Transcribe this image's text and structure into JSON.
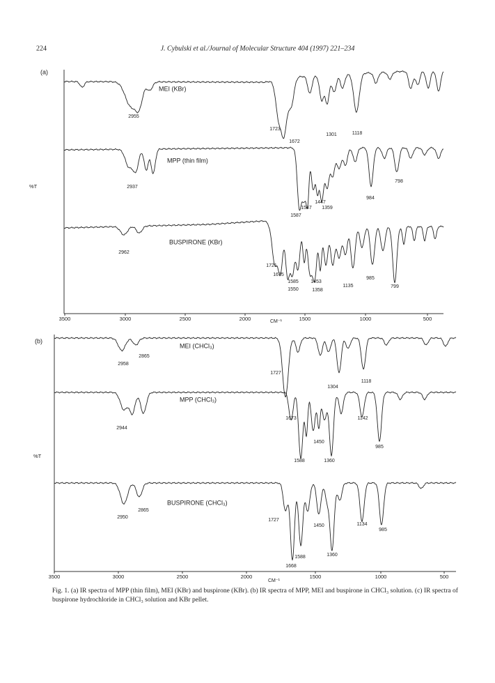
{
  "header": {
    "page_number": "224",
    "running_title": "J. Cybulski et al./Journal of Molecular Structure 404 (1997) 221–234"
  },
  "figure": {
    "panels": [
      {
        "label": "(a)",
        "y_axis_label": "%T",
        "x_axis_label": "CM⁻¹",
        "x_ticks": [
          3500,
          3000,
          2500,
          2000,
          1500,
          1000,
          500
        ],
        "spectra": [
          {
            "name": "MEI (KBr)",
            "peaks": [
              2955,
              1723,
              1672,
              1301,
              1118
            ]
          },
          {
            "name": "MPP (thin film)",
            "peaks": [
              2937,
              798,
              984,
              1447,
              1547,
              1359,
              1587
            ]
          },
          {
            "name": "BUSPIRONE (KBr)",
            "peaks": [
              2962,
              1721,
              1675,
              1585,
              1453,
              1550,
              1358,
              1135,
              985,
              799
            ]
          }
        ]
      },
      {
        "label": "(b)",
        "y_axis_label": "%T",
        "x_axis_label": "CM⁻¹",
        "x_ticks": [
          3500,
          3000,
          2500,
          2000,
          1500,
          1000,
          500
        ],
        "spectra": [
          {
            "name": "MEI (CHCl₃)",
            "peaks": [
              2958,
              2865,
              1727,
              1304,
              1118
            ]
          },
          {
            "name": "MPP (CHCl₃)",
            "peaks": [
              2944,
              1673,
              1142,
              1450,
              985,
              1588,
              1360
            ]
          },
          {
            "name": "BUSPIRONE (CHCl₃)",
            "peaks": [
              2950,
              2865,
              1727,
              1450,
              1134,
              985,
              1588,
              1360,
              1668
            ]
          }
        ]
      }
    ],
    "caption": "Fig. 1. (a) IR spectra of MPP (thin film), MEI (KBr) and buspirone (KBr). (b) IR spectra of MPP, MEI and buspirone in CHCl₃ solution. (c) IR spectra of buspirone hydrochloride in CHCl₃ solution and KBr pellet."
  }
}
